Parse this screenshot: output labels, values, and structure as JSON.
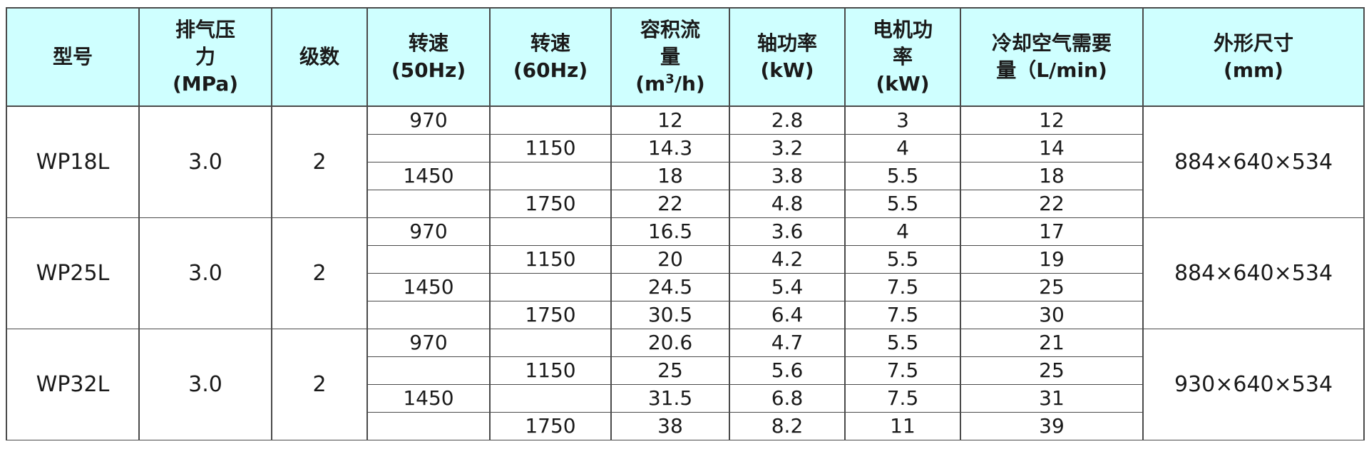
{
  "headers": {
    "model": [
      "型号"
    ],
    "pressure": [
      "排气压",
      "力",
      "(MPa)"
    ],
    "stages": [
      "级数"
    ],
    "speed50": [
      "转速",
      "(50Hz)"
    ],
    "speed60": [
      "转速",
      "(60Hz)"
    ],
    "flow_l1": "容积流",
    "flow_l2": "量",
    "flow_unit_pre": "(m",
    "flow_unit_sup": "3",
    "flow_unit_post": "/h)",
    "shaft_power": [
      "轴功率",
      "(kW)"
    ],
    "motor_power": [
      "电机功",
      "率",
      "(kW)"
    ],
    "cooling_air": [
      "冷却空气需要",
      "量（L/min)"
    ],
    "dimensions": [
      "外形尺寸",
      "(mm)"
    ]
  },
  "groups": [
    {
      "model": "WP18L",
      "pressure": "3.0",
      "stages": "2",
      "dimensions": "884×640×534",
      "rows": [
        {
          "speed50": "970",
          "speed60": "",
          "flow": "12",
          "shaft": "2.8",
          "motor": "3",
          "cooling": "12"
        },
        {
          "speed50": "",
          "speed60": "1150",
          "flow": "14.3",
          "shaft": "3.2",
          "motor": "4",
          "cooling": "14"
        },
        {
          "speed50": "1450",
          "speed60": "",
          "flow": "18",
          "shaft": "3.8",
          "motor": "5.5",
          "cooling": "18"
        },
        {
          "speed50": "",
          "speed60": "1750",
          "flow": "22",
          "shaft": "4.8",
          "motor": "5.5",
          "cooling": "22"
        }
      ]
    },
    {
      "model": "WP25L",
      "pressure": "3.0",
      "stages": "2",
      "dimensions": "884×640×534",
      "rows": [
        {
          "speed50": "970",
          "speed60": "",
          "flow": "16.5",
          "shaft": "3.6",
          "motor": "4",
          "cooling": "17"
        },
        {
          "speed50": "",
          "speed60": "1150",
          "flow": "20",
          "shaft": "4.2",
          "motor": "5.5",
          "cooling": "19"
        },
        {
          "speed50": "1450",
          "speed60": "",
          "flow": "24.5",
          "shaft": "5.4",
          "motor": "7.5",
          "cooling": "25"
        },
        {
          "speed50": "",
          "speed60": "1750",
          "flow": "30.5",
          "shaft": "6.4",
          "motor": "7.5",
          "cooling": "30"
        }
      ]
    },
    {
      "model": "WP32L",
      "pressure": "3.0",
      "stages": "2",
      "dimensions": "930×640×534",
      "rows": [
        {
          "speed50": "970",
          "speed60": "",
          "flow": "20.6",
          "shaft": "4.7",
          "motor": "5.5",
          "cooling": "21"
        },
        {
          "speed50": "",
          "speed60": "1150",
          "flow": "25",
          "shaft": "5.6",
          "motor": "7.5",
          "cooling": "25"
        },
        {
          "speed50": "1450",
          "speed60": "",
          "flow": "31.5",
          "shaft": "6.8",
          "motor": "7.5",
          "cooling": "31"
        },
        {
          "speed50": "",
          "speed60": "1750",
          "flow": "38",
          "shaft": "8.2",
          "motor": "11",
          "cooling": "39"
        }
      ]
    }
  ]
}
